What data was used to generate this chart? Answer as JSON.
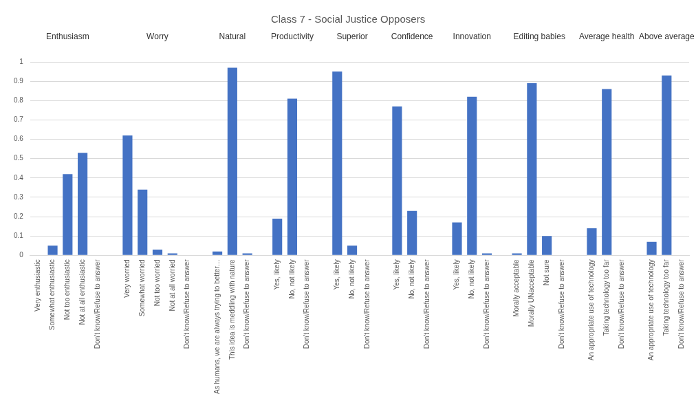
{
  "chart_data": {
    "type": "bar",
    "title": "Class 7 - Social Justice Opposers",
    "annotations": [
      "Enthusiasm",
      "Worry",
      "Natural",
      "Productivity",
      "Superior",
      "Confidence",
      "Innovation",
      "Editing babies",
      "Average health",
      "Above average"
    ],
    "categories": [
      "Very enthusiastic",
      "Somewhat enthusiastic",
      "Not too enthusiastic",
      "Not at all enthusiastic",
      "Don't know/Refuse to answer",
      null,
      "Very worried",
      "Somewhat worried",
      "Not too worried",
      "Not at all worried",
      "Don't know/Refuse to answer",
      null,
      "As humans, we are always trying to better…",
      "This idea is meddling with nature",
      "Don't know/Refuse to answer",
      null,
      "Yes, likely",
      "No, not likely",
      "Don't know/Refuse to answer",
      null,
      "Yes, likely",
      "No, not likely",
      "Don't know/Refuse to answer",
      null,
      "Yes, likely",
      "No, not likely",
      "Don't know/Refuse to answer",
      null,
      "Yes, likely",
      "No, not likely",
      "Don't know/Refuse to answer",
      null,
      "Morally acceptable",
      "Morally UNacceptable",
      "Not sure",
      "Don't know/Refuse to answer",
      null,
      "An appropriate use of technology",
      "Taking technology too far",
      "Don't know/Refuse to answer",
      null,
      "An appropriate use of technology",
      "Taking technology too far",
      "Don't know/Refuse to answer"
    ],
    "values": [
      0,
      0.05,
      0.42,
      0.53,
      0,
      null,
      0.62,
      0.34,
      0.03,
      0.01,
      0,
      null,
      0.02,
      0.97,
      0.01,
      null,
      0.19,
      0.81,
      0,
      null,
      0.95,
      0.05,
      0,
      null,
      0.77,
      0.23,
      0,
      null,
      0.17,
      0.82,
      0.01,
      null,
      0.01,
      0.89,
      0.1,
      0,
      null,
      0.14,
      0.86,
      0,
      null,
      0.07,
      0.93,
      0
    ],
    "color": "#4472c4",
    "ylim": [
      0,
      1
    ],
    "yticks": [
      0,
      0.1,
      0.2,
      0.3,
      0.4,
      0.5,
      0.6,
      0.7,
      0.8,
      0.9,
      1
    ],
    "grid": "y",
    "legend": false
  }
}
